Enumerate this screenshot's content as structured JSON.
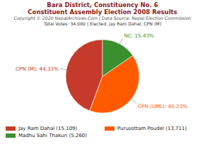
{
  "chart_data": {
    "type": "pie",
    "title": "Bara District, Constituency No. 6",
    "subtitle": "Constituent Assembly Election 2008 Results",
    "caption": [
      "Copyright © 2020 NepalArchives.Com | Data Source: Nepal Election Commission",
      "Total Votes: 34,080 | Elected: Jay Ram Dahal, CPN (M)"
    ],
    "categories": [
      "CPN (M)",
      "CPN (UML)",
      "NC"
    ],
    "values": [
      44.33,
      40.23,
      15.43
    ],
    "value_labels": [
      "CPN (M): 44.33%",
      "CPN (UML): 40.23%",
      "NC: 15.43%"
    ],
    "data_labels": true,
    "colors": [
      "#c63a2b",
      "#ff5a00",
      "#3a8f2e"
    ],
    "legend": "bottom",
    "legend_entries": [
      "Jay Ram Dahal (15,109)",
      "Purusottam Poudel (13,711)",
      "Madhu Sahi Thakuri (5,260)"
    ]
  }
}
